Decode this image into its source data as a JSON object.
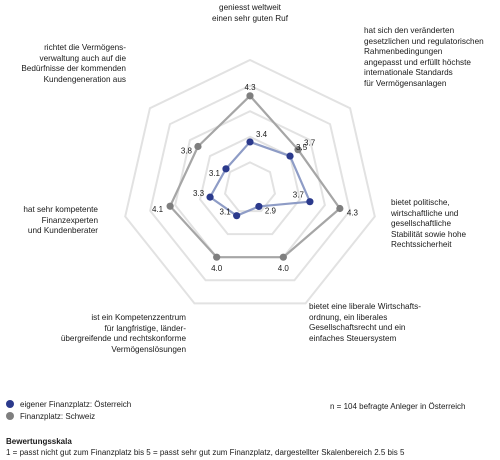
{
  "chart_data": {
    "type": "radar",
    "scale_min": 2.5,
    "scale_max": 5,
    "rings": [
      2.5,
      3.0,
      3.5,
      4.0,
      4.5,
      5.0
    ],
    "axes": [
      "geniesst weltweit\neinen sehr guten Ruf",
      "hat sich den veränderten\ngesetzlichen und regulatorischen\nRahmenbedingungen\nangepasst und erfüllt höchste\ninternationale Standards\nfür Vermögensanlagen",
      "bietet politische,\nwirtschaftliche und\ngesellschaftliche\nStabilität sowie hohe\nRechtssicherheit",
      "bietet eine liberale Wirtschafts-\nordnung, ein liberales\nGesellschaftsrecht und ein\neinfaches Steuersystem",
      "ist ein Kompetenzzentrum\nfür langfristige, länder-\nübergreifende und rechtskonforme\nVermögenslösungen",
      "hat sehr kompetente\nFinanzexperten\nund Kundenberater",
      "richtet die Vermögens-\nverwaltung auch auf die\nBedürfnisse der kommenden\nKundengeneration aus"
    ],
    "series": [
      {
        "name": "eigener Finanzplatz: Österreich",
        "color": "#2b3a8c",
        "line_color": "#8e9cc6",
        "values": [
          3.4,
          3.5,
          3.7,
          2.9,
          3.1,
          3.3,
          3.1
        ],
        "labels": [
          "3.4",
          "3.5",
          "3.7",
          "2.9",
          "3.1",
          "3.3",
          "3.1"
        ]
      },
      {
        "name": "Finanzplatz: Schweiz",
        "color": "#7f7f7f",
        "line_color": "#a6a6a6",
        "values": [
          4.3,
          3.7,
          4.3,
          4.0,
          4.0,
          4.1,
          3.8
        ],
        "labels": [
          "4.3",
          "3.7",
          "4.3",
          "4.0",
          "4.0",
          "4.1",
          "3.8"
        ]
      }
    ],
    "grid_color": "#e2e2e2",
    "grid_fill": "#ffffff"
  },
  "legend": {
    "austria_label": "eigener Finanzplatz: Österreich",
    "switzerland_label": "Finanzplatz: Schweiz",
    "austria_color": "#2b3a8c",
    "switzerland_color": "#7f7f7f"
  },
  "note": "n = 104 befragte Anleger in Österreich",
  "scale": {
    "title": "Bewertungsskala",
    "text": "1 = passt nicht gut zum Finanzplatz bis 5 = passt sehr gut zum Finanzplatz, dargestellter Skalenbereich 2.5 bis 5"
  }
}
